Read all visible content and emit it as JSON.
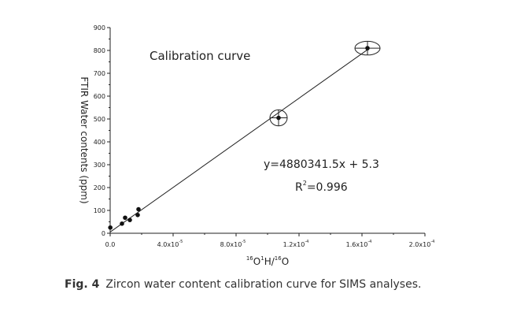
{
  "chart_data": {
    "type": "scatter",
    "title": "Calibration curve",
    "ylabel": "FTIR Water contents (ppm)",
    "xlabel_parts": {
      "iso1": "16",
      "a": "O",
      "iso2": "1",
      "b": "H/",
      "iso3": "16",
      "c": "O"
    },
    "xlim": [
      0,
      0.0002
    ],
    "ylim": [
      0,
      900
    ],
    "xticks": [
      {
        "value": 0,
        "label": "0.0",
        "exp": ""
      },
      {
        "value": 4e-05,
        "label": "4.0x10",
        "exp": "-5"
      },
      {
        "value": 8e-05,
        "label": "8.0x10",
        "exp": "-5"
      },
      {
        "value": 0.00012,
        "label": "1.2x10",
        "exp": "-4"
      },
      {
        "value": 0.00016,
        "label": "1.6x10",
        "exp": "-4"
      },
      {
        "value": 0.0002,
        "label": "2.0x10",
        "exp": "-4"
      }
    ],
    "yticks": [
      {
        "value": 0,
        "label": "0"
      },
      {
        "value": 100,
        "label": "100"
      },
      {
        "value": 200,
        "label": "200"
      },
      {
        "value": 300,
        "label": "300"
      },
      {
        "value": 400,
        "label": "400"
      },
      {
        "value": 500,
        "label": "500"
      },
      {
        "value": 600,
        "label": "600"
      },
      {
        "value": 700,
        "label": "700"
      },
      {
        "value": 800,
        "label": "800"
      },
      {
        "value": 900,
        "label": "900"
      }
    ],
    "points": [
      {
        "x": 1e-07,
        "y": 25
      },
      {
        "x": 7.5e-06,
        "y": 42
      },
      {
        "x": 9.5e-06,
        "y": 68
      },
      {
        "x": 1.25e-05,
        "y": 58
      },
      {
        "x": 1.75e-05,
        "y": 80
      },
      {
        "x": 1.8e-05,
        "y": 105
      },
      {
        "x": 0.000107,
        "y": 505,
        "circled": true,
        "err_x": 5.5e-06,
        "err_y": 35
      },
      {
        "x": 0.0001635,
        "y": 810,
        "circled": true,
        "err_x": 8e-06,
        "err_y": 30
      }
    ],
    "fit": {
      "slope": 4880341.5,
      "intercept": 5.3,
      "x_range": [
        0,
        0.0001635
      ]
    },
    "equation": "y=4880341.5x + 5.3",
    "r2_prefix": "R",
    "r2_exp": "2",
    "r2_value": "=0.996",
    "grid": false
  },
  "caption": {
    "label": "Fig. 4",
    "text": "Zircon water content calibration curve for SIMS analyses."
  }
}
